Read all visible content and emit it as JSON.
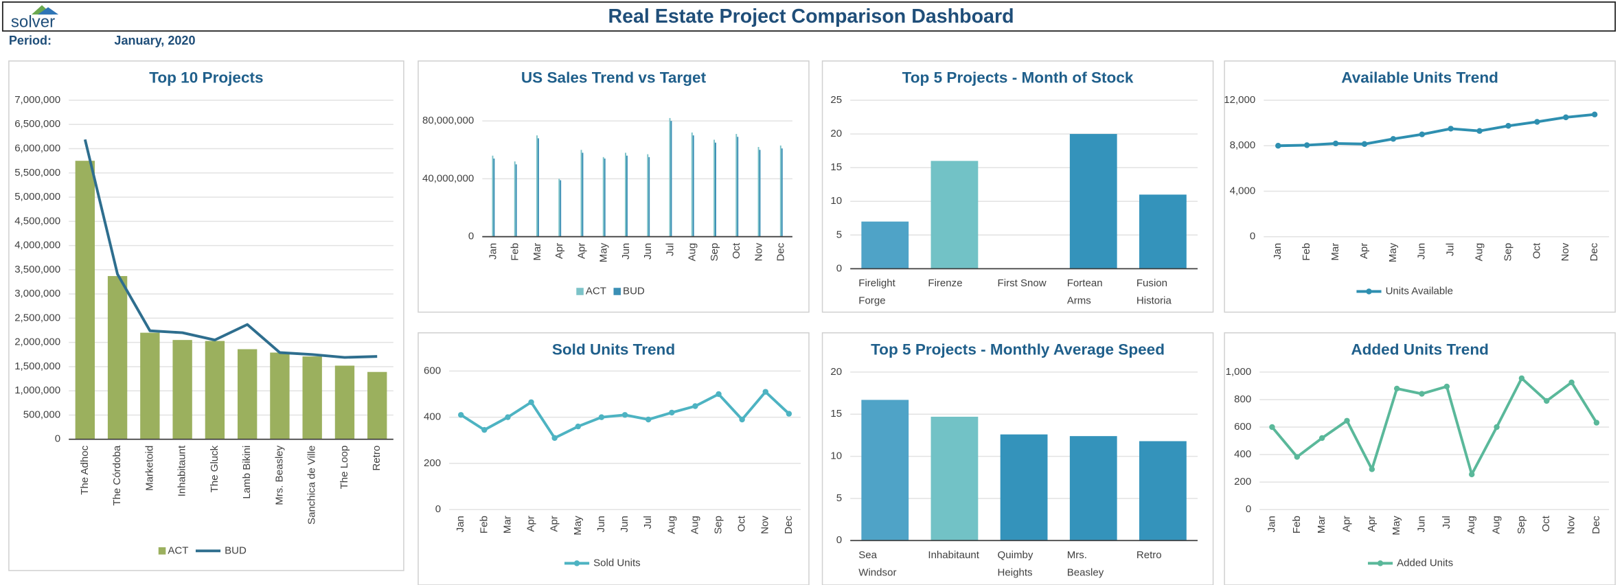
{
  "header": {
    "logo": "solver",
    "title": "Real Estate Project Comparison Dashboard",
    "period_label": "Period:",
    "period": "January, 2020"
  },
  "chart_data": [
    {
      "type": "bar",
      "title": "Top 10 Projects",
      "categories": [
        "The Adhoc",
        "The Córdoba",
        "Marketoid",
        "Inhabitaunt",
        "The Gluck",
        "Lamb Bikini",
        "Mrs. Beasley",
        "Sanchica de Ville",
        "The Loop",
        "Retro"
      ],
      "series": [
        {
          "name": "ACT",
          "color": "#9bb05e",
          "values": [
            5750000,
            3370000,
            2200000,
            2050000,
            2030000,
            1860000,
            1790000,
            1710000,
            1520000,
            1390000
          ]
        },
        {
          "name": "BUD",
          "color": "#2e6e8e",
          "type": "line",
          "values": [
            6190000,
            3410000,
            2240000,
            2200000,
            2050000,
            2370000,
            1790000,
            1750000,
            1690000,
            1710000
          ]
        }
      ],
      "ylim": [
        0,
        7000000
      ],
      "yticks": [
        0,
        {
          "value": 500000,
          "label": "500,000"
        },
        {
          "value": 1000000,
          "label": "1,000,000"
        },
        {
          "value": 1500000,
          "label": "1,500,000"
        },
        {
          "value": 2000000,
          "label": "2,000,000"
        },
        {
          "value": 2500000,
          "label": "2,500,000"
        },
        {
          "value": 3000000,
          "label": "3,000,000"
        },
        {
          "value": 3500000,
          "label": "3,500,000"
        },
        {
          "value": 4000000,
          "label": "4,000,000"
        },
        {
          "value": 4500000,
          "label": "4,500,000"
        },
        {
          "value": 5000000,
          "label": "5,000,000"
        },
        {
          "value": 5500000,
          "label": "5,500,000"
        },
        {
          "value": 6000000,
          "label": "6,000,000"
        },
        {
          "value": 6500000,
          "label": "6,500,000"
        },
        {
          "value": 7000000,
          "label": "7,000,000"
        }
      ],
      "grid": true,
      "legend": "bottom"
    },
    {
      "type": "bar",
      "title": "US Sales Trend vs Target",
      "categories": [
        "Jan",
        "Feb",
        "Mar",
        "Apr",
        "Apr",
        "May",
        "Jun",
        "Jun",
        "Jul",
        "Aug",
        "Sep",
        "Oct",
        "Nov",
        "Dec"
      ],
      "series": [
        {
          "name": "ACT",
          "color": "#7cc3c8",
          "values": [
            56000000,
            52000000,
            70000000,
            40000000,
            60000000,
            55000000,
            58000000,
            57000000,
            82000000,
            72000000,
            67000000,
            71000000,
            62000000,
            63000000
          ]
        },
        {
          "name": "BUD",
          "color": "#3b8fb5",
          "values": [
            54000000,
            50000000,
            68000000,
            39000000,
            58000000,
            54000000,
            56000000,
            55000000,
            80000000,
            70000000,
            65000000,
            69000000,
            60000000,
            61000000
          ]
        }
      ],
      "ylim": [
        0,
        90000000
      ],
      "yticks": [
        0,
        {
          "value": 40000000,
          "label": "40,000,000"
        },
        {
          "value": 80000000,
          "label": "80,000,000"
        }
      ],
      "grid": true,
      "legend": "bottom"
    },
    {
      "type": "bar",
      "title": "Top 5 Projects - Month of Stock",
      "categories": [
        "Firelight Forge",
        "Firenze",
        "First Snow",
        "Fortean Arms",
        "Fusion Historia"
      ],
      "values": [
        7,
        16,
        0,
        20,
        11
      ],
      "colors": [
        "#4fa3c7",
        "#72c2c6",
        "#4fa3c7",
        "#3493bb",
        "#3493bb"
      ],
      "ylim": [
        0,
        25
      ],
      "yticks": [
        0,
        5,
        10,
        15,
        20,
        25
      ],
      "grid": true
    },
    {
      "type": "line",
      "title": "Available Units Trend",
      "categories": [
        "Jan",
        "Feb",
        "Mar",
        "Apr",
        "May",
        "Jun",
        "Jul",
        "Aug",
        "Sep",
        "Oct",
        "Nov",
        "Dec"
      ],
      "series": [
        {
          "name": "Units Available",
          "color": "#2e8fb0",
          "values": [
            8000,
            8050,
            8200,
            8150,
            8600,
            9000,
            9500,
            9300,
            9750,
            10100,
            10500,
            10750
          ]
        }
      ],
      "ylim": [
        0,
        12000
      ],
      "yticks": [
        0,
        {
          "value": 4000,
          "label": "4,000"
        },
        {
          "value": 8000,
          "label": "8,000"
        },
        {
          "value": 12000,
          "label": "12,000"
        }
      ],
      "grid": true,
      "markers": true,
      "legend": "bottom"
    },
    {
      "type": "line",
      "title": "Sold Units Trend",
      "categories": [
        "Jan",
        "Feb",
        "Mar",
        "Apr",
        "Apr",
        "May",
        "Jun",
        "Jun",
        "Jul",
        "Aug",
        "Aug",
        "Sep",
        "Oct",
        "Nov",
        "Dec"
      ],
      "series": [
        {
          "name": "Sold Units",
          "color": "#4db3c2",
          "values": [
            410,
            345,
            400,
            465,
            310,
            360,
            400,
            410,
            390,
            420,
            448,
            500,
            390,
            510,
            415
          ]
        }
      ],
      "ylim": [
        0,
        600
      ],
      "yticks": [
        0,
        200,
        400,
        600
      ],
      "grid": true,
      "markers": true,
      "legend": "bottom"
    },
    {
      "type": "bar",
      "title": "Top 5 Projects - Monthly Average Speed",
      "categories": [
        "Sea Windsor",
        "Inhabitaunt",
        "Quimby Heights",
        "Mrs. Beasley",
        "Retro"
      ],
      "values": [
        16.7,
        14.7,
        12.6,
        12.4,
        11.8
      ],
      "colors": [
        "#4fa3c7",
        "#72c2c6",
        "#3493bb",
        "#3493bb",
        "#3493bb"
      ],
      "ylim": [
        0,
        20
      ],
      "yticks": [
        0,
        5,
        10,
        15,
        20
      ],
      "grid": true
    },
    {
      "type": "line",
      "title": "Added Units Trend",
      "categories": [
        "Jan",
        "Feb",
        "Mar",
        "Apr",
        "Apr",
        "May",
        "Jun",
        "Jul",
        "Aug",
        "Aug",
        "Sep",
        "Oct",
        "Nov",
        "Dec"
      ],
      "series": [
        {
          "name": "Added Units",
          "color": "#5ab89a",
          "values": [
            600,
            383,
            520,
            646,
            293,
            880,
            842,
            895,
            256,
            600,
            955,
            790,
            925,
            632
          ]
        }
      ],
      "ylim": [
        0,
        1000
      ],
      "yticks": [
        0,
        200,
        400,
        600,
        800,
        {
          "value": 1000,
          "label": "1,000"
        }
      ],
      "grid": true,
      "markers": true,
      "legend": "bottom"
    }
  ]
}
